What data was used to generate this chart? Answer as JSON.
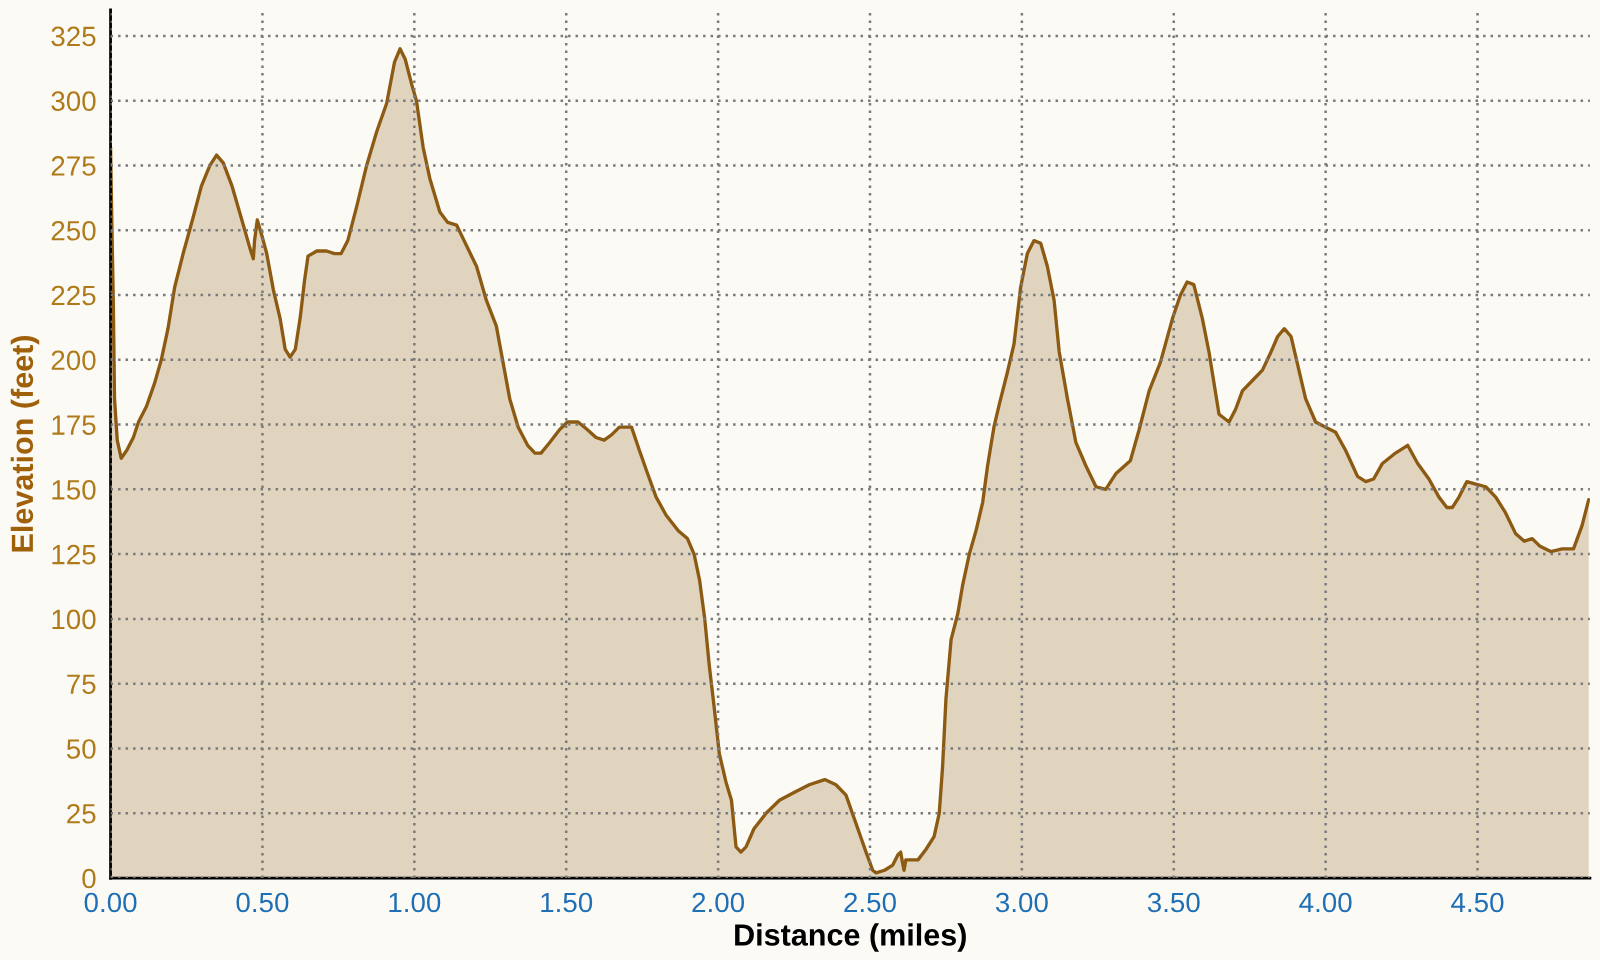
{
  "chart_data": {
    "type": "area",
    "xlabel": "Distance (miles)",
    "ylabel": "Elevation (feet)",
    "x": [
      0,
      0.004,
      0.009,
      0.013,
      0.022,
      0.035,
      0.053,
      0.075,
      0.092,
      0.118,
      0.145,
      0.167,
      0.189,
      0.211,
      0.239,
      0.272,
      0.299,
      0.327,
      0.349,
      0.371,
      0.4,
      0.437,
      0.459,
      0.47,
      0.474,
      0.483,
      0.498,
      0.514,
      0.536,
      0.558,
      0.575,
      0.591,
      0.608,
      0.624,
      0.639,
      0.65,
      0.679,
      0.711,
      0.737,
      0.759,
      0.781,
      0.81,
      0.843,
      0.876,
      0.909,
      0.935,
      0.953,
      0.97,
      0.992,
      1.007,
      1.029,
      1.051,
      1.084,
      1.11,
      1.139,
      1.172,
      1.205,
      1.237,
      1.27,
      1.292,
      1.314,
      1.342,
      1.373,
      1.397,
      1.417,
      1.445,
      1.478,
      1.504,
      1.539,
      1.57,
      1.598,
      1.625,
      1.649,
      1.675,
      1.715,
      1.741,
      1.768,
      1.796,
      1.829,
      1.869,
      1.899,
      1.921,
      1.939,
      1.956,
      1.971,
      1.987,
      2.004,
      2.026,
      2.044,
      2.059,
      2.075,
      2.092,
      2.118,
      2.158,
      2.202,
      2.25,
      2.3,
      2.351,
      2.388,
      2.421,
      2.46,
      2.487,
      2.509,
      2.52,
      2.548,
      2.575,
      2.592,
      2.601,
      2.607,
      2.612,
      2.618,
      2.658,
      2.684,
      2.711,
      2.728,
      2.739,
      2.75,
      2.767,
      2.789,
      2.805,
      2.827,
      2.849,
      2.871,
      2.887,
      2.908,
      2.926,
      2.952,
      2.974,
      2.996,
      3.018,
      3.04,
      3.062,
      3.084,
      3.106,
      3.123,
      3.15,
      3.178,
      3.211,
      3.244,
      3.276,
      3.309,
      3.357,
      3.386,
      3.419,
      3.456,
      3.496,
      3.522,
      3.544,
      3.566,
      3.594,
      3.616,
      3.649,
      3.682,
      3.704,
      3.726,
      3.759,
      3.792,
      3.82,
      3.842,
      3.864,
      3.886,
      3.908,
      3.934,
      3.967,
      4.0,
      4.033,
      4.066,
      4.105,
      4.132,
      4.158,
      4.187,
      4.23,
      4.27,
      4.303,
      4.34,
      4.373,
      4.399,
      4.417,
      4.439,
      4.465,
      4.494,
      4.527,
      4.56,
      4.592,
      4.625,
      4.654,
      4.68,
      4.706,
      4.741,
      4.779,
      4.816,
      4.844,
      4.866
    ],
    "series": [
      {
        "color": "#8c5a12",
        "values": [
          282,
          254,
          223,
          185,
          169,
          162,
          165,
          170,
          176,
          182,
          191,
          200,
          212,
          228,
          241,
          255,
          267,
          275,
          279,
          276,
          267,
          252,
          243,
          239,
          246,
          254,
          248,
          241,
          227,
          216,
          204,
          201,
          204,
          216,
          231,
          240,
          242,
          242,
          241,
          241,
          246,
          259,
          275,
          288,
          299,
          315,
          320,
          316,
          306,
          300,
          282,
          270,
          257,
          253,
          252,
          244,
          236,
          223,
          213,
          199,
          185,
          174,
          167,
          164,
          164,
          168,
          173,
          176,
          176,
          173,
          170,
          169,
          171,
          174,
          174,
          165,
          156,
          147,
          140,
          134,
          131,
          125,
          115,
          100,
          82,
          66,
          48,
          37,
          30,
          12,
          10,
          12,
          19,
          25,
          30,
          33,
          36,
          38,
          36,
          32,
          19,
          10,
          3,
          2,
          3,
          5,
          9,
          10,
          6,
          3,
          7,
          7,
          11,
          16,
          25,
          43,
          69,
          92,
          102,
          113,
          125,
          134,
          145,
          159,
          174,
          183,
          195,
          206,
          228,
          241,
          246,
          245,
          236,
          223,
          203,
          185,
          168,
          159,
          151,
          150,
          156,
          161,
          173,
          188,
          199,
          216,
          225,
          230,
          229,
          216,
          203,
          179,
          176,
          181,
          188,
          192,
          196,
          203,
          209,
          212,
          209,
          198,
          185,
          176,
          174,
          172,
          165,
          155,
          153,
          154,
          160,
          164,
          167,
          160,
          154,
          147,
          143,
          143,
          147,
          153,
          152,
          151,
          147,
          141,
          133,
          130,
          131,
          128,
          126,
          127,
          127,
          136,
          146
        ]
      }
    ],
    "xlim": [
      0,
      4.87
    ],
    "xticks": [
      {
        "value": 0,
        "label": "0.00"
      },
      {
        "value": 0.5,
        "label": "0.50"
      },
      {
        "value": 1,
        "label": "1.00"
      },
      {
        "value": 1.5,
        "label": "1.50"
      },
      {
        "value": 2,
        "label": "2.00"
      },
      {
        "value": 2.5,
        "label": "2.50"
      },
      {
        "value": 3,
        "label": "3.00"
      },
      {
        "value": 3.5,
        "label": "3.50"
      },
      {
        "value": 4,
        "label": "4.00"
      },
      {
        "value": 4.5,
        "label": "4.50"
      }
    ],
    "ylim": [
      0,
      335
    ],
    "yticks": [
      0,
      25,
      50,
      75,
      100,
      125,
      150,
      175,
      200,
      225,
      250,
      275,
      300,
      325
    ],
    "grid": true
  }
}
